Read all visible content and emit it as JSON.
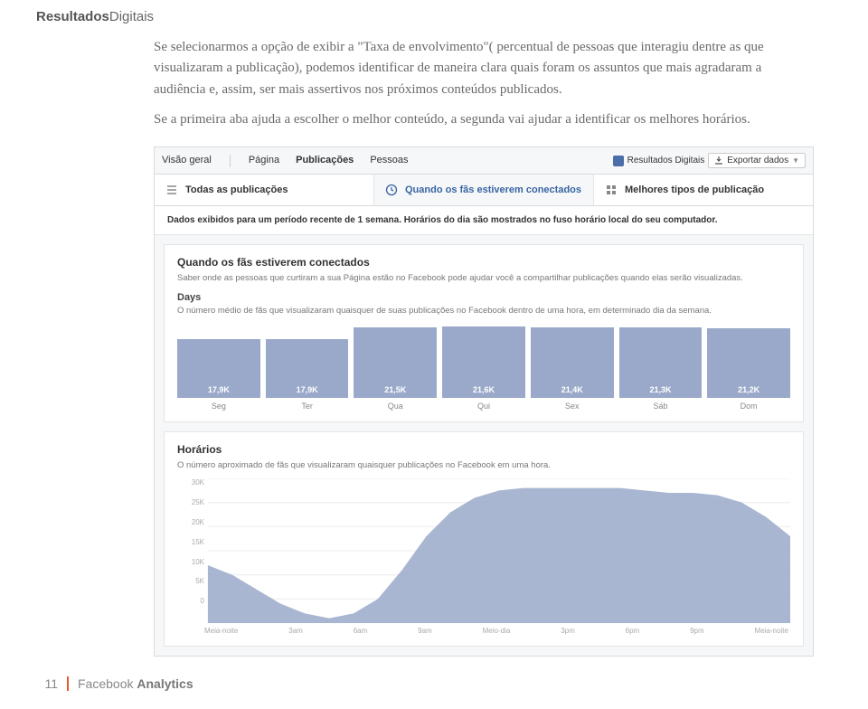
{
  "brand": {
    "part1": "Resultados",
    "part2": "Digitais"
  },
  "paragraph1": "Se selecionarmos a opção de exibir a \"Taxa de envolvimento\"( percentual de pessoas que interagiu dentre as que visualizaram a publicação), podemos identificar de maneira clara quais foram os assuntos que mais agradaram a audiência e, assim, ser mais assertivos nos próximos conteúdos publicados.",
  "paragraph2": "Se a primeira aba ajuda a escolher o melhor conteúdo, a segunda vai ajudar a identificar os melhores horários.",
  "topnav": {
    "items": [
      "Visão geral",
      "Página",
      "Publicações",
      "Pessoas"
    ],
    "active_index": 2,
    "right_label": "Resultados Digitais",
    "export_label": "Exportar dados"
  },
  "subtabs": {
    "items": [
      {
        "label": "Todas as publicações",
        "icon": "list-icon"
      },
      {
        "label": "Quando os fãs estiverem conectados",
        "icon": "clock-icon"
      },
      {
        "label": "Melhores tipos de publicação",
        "icon": "grid-icon"
      }
    ],
    "active_index": 1
  },
  "note": "Dados exibidos para um período recente de 1 semana. Horários do dia são mostrados no fuso horário local do seu computador.",
  "section1": {
    "title": "Quando os fãs estiverem conectados",
    "desc": "Saber onde as pessoas que curtiram a sua Página estão no Facebook pode ajudar você a compartilhar publicações quando elas serão visualizadas."
  },
  "days": {
    "title": "Days",
    "desc": "O número médio de fãs que visualizaram quaisquer de suas publicações no Facebook dentro de uma hora, em determinado dia da semana.",
    "labels": [
      "Seg",
      "Ter",
      "Qua",
      "Qui",
      "Sex",
      "Sáb",
      "Dom"
    ],
    "values_text": [
      "17,9K",
      "17,9K",
      "21,5K",
      "21,6K",
      "21,4K",
      "21,3K",
      "21,2K"
    ],
    "values_num": [
      17.9,
      17.9,
      21.5,
      21.6,
      21.4,
      21.3,
      21.2
    ],
    "max": 22,
    "bar_color": "#9aa9c9"
  },
  "hours": {
    "title": "Horários",
    "desc": "O número aproximado de fãs que visualizaram quaisquer publicações no Facebook em uma hora.",
    "y_ticks": [
      "30K",
      "25K",
      "20K",
      "15K",
      "10K",
      "5K",
      "0"
    ],
    "x_ticks": [
      "Meia-noite",
      "3am",
      "6am",
      "9am",
      "Meio-dia",
      "3pm",
      "6pm",
      "9pm",
      "Meia-noite"
    ],
    "area_color": "#9aa9c9",
    "points": [
      12,
      10,
      7,
      4,
      2,
      1,
      2,
      5,
      11,
      18,
      23,
      26,
      27.5,
      28,
      28,
      28,
      28,
      28,
      27.5,
      27,
      27,
      26.5,
      25,
      22,
      18
    ]
  },
  "footer": {
    "page_number": "11",
    "title_plain": "Facebook ",
    "title_bold": "Analytics"
  }
}
